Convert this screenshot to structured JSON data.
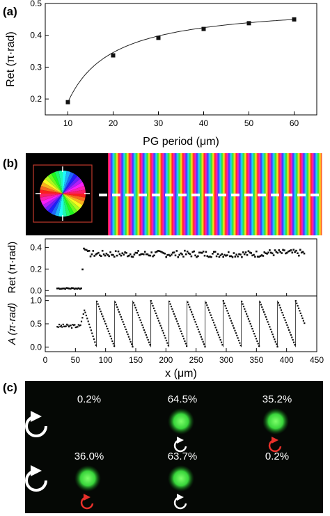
{
  "panels": {
    "a": {
      "label": "(a)"
    },
    "b": {
      "label": "(b)"
    },
    "c": {
      "label": "(c)"
    }
  },
  "colors": {
    "curve": "#222222",
    "marker": "#111111",
    "dot_green": "#38d43a",
    "arrow_white": "#ffffff",
    "arrow_red": "#e8302a",
    "dashed_line": "#ffffff",
    "inset_box": "#c0392b"
  },
  "chart_data": [
    {
      "type": "line",
      "panel": "a",
      "xlabel": "PG period (μm)",
      "ylabel": "Ret (π·rad)",
      "xlim": [
        5,
        65
      ],
      "ylim": [
        0.15,
        0.5
      ],
      "xticks": [
        10,
        20,
        30,
        40,
        50,
        60
      ],
      "yticks": [
        0.2,
        0.3,
        0.4,
        0.5
      ],
      "points": {
        "x": [
          10,
          20,
          30,
          40,
          50,
          60
        ],
        "y": [
          0.19,
          0.337,
          0.392,
          0.42,
          0.438,
          0.45
        ]
      }
    },
    {
      "type": "scatter",
      "panel": "b-middle",
      "ylabel": "Ret (π·rad)",
      "xlim": [
        0,
        450
      ],
      "ylim": [
        -0.05,
        0.48
      ],
      "yticks": [
        0.0,
        0.2,
        0.4
      ],
      "segments": [
        {
          "x_range": [
            20,
            62
          ],
          "y": 0.02
        },
        {
          "x_range": [
            62,
            68
          ],
          "y": 0.39
        },
        {
          "x_range": [
            68,
            430
          ],
          "y": 0.34
        }
      ]
    },
    {
      "type": "scatter",
      "panel": "b-bottom",
      "xlabel": "x (μm)",
      "ylabel": "A (π·rad)",
      "xlim": [
        0,
        450
      ],
      "ylim": [
        -0.1,
        1.1
      ],
      "xticks": [
        0,
        50,
        100,
        150,
        200,
        250,
        300,
        350,
        400,
        450
      ],
      "yticks": [
        0.0,
        0.5,
        1.0
      ],
      "flat_region": {
        "x_range": [
          20,
          58
        ],
        "y": 0.45
      },
      "sawtooth": {
        "period": 30,
        "peak": 1.0,
        "trough": 0.0,
        "first_peak_x": 85,
        "last_x": 430
      }
    }
  ],
  "image_panel_b": {
    "stripe_count": 20,
    "hue_sequence": [
      "red",
      "magenta",
      "blue",
      "cyan",
      "green",
      "yellow"
    ]
  },
  "panel_c": {
    "cells": [
      {
        "percent": "0.2%",
        "spot": false
      },
      {
        "percent": "64.5%",
        "spot": true,
        "arrow": "white"
      },
      {
        "percent": "35.2%",
        "spot": true,
        "arrow": "red"
      },
      {
        "percent": "36.0%",
        "spot": true,
        "arrow": "red"
      },
      {
        "percent": "63.7%",
        "spot": true,
        "arrow": "white"
      },
      {
        "percent": "0.2%",
        "spot": false
      }
    ]
  }
}
